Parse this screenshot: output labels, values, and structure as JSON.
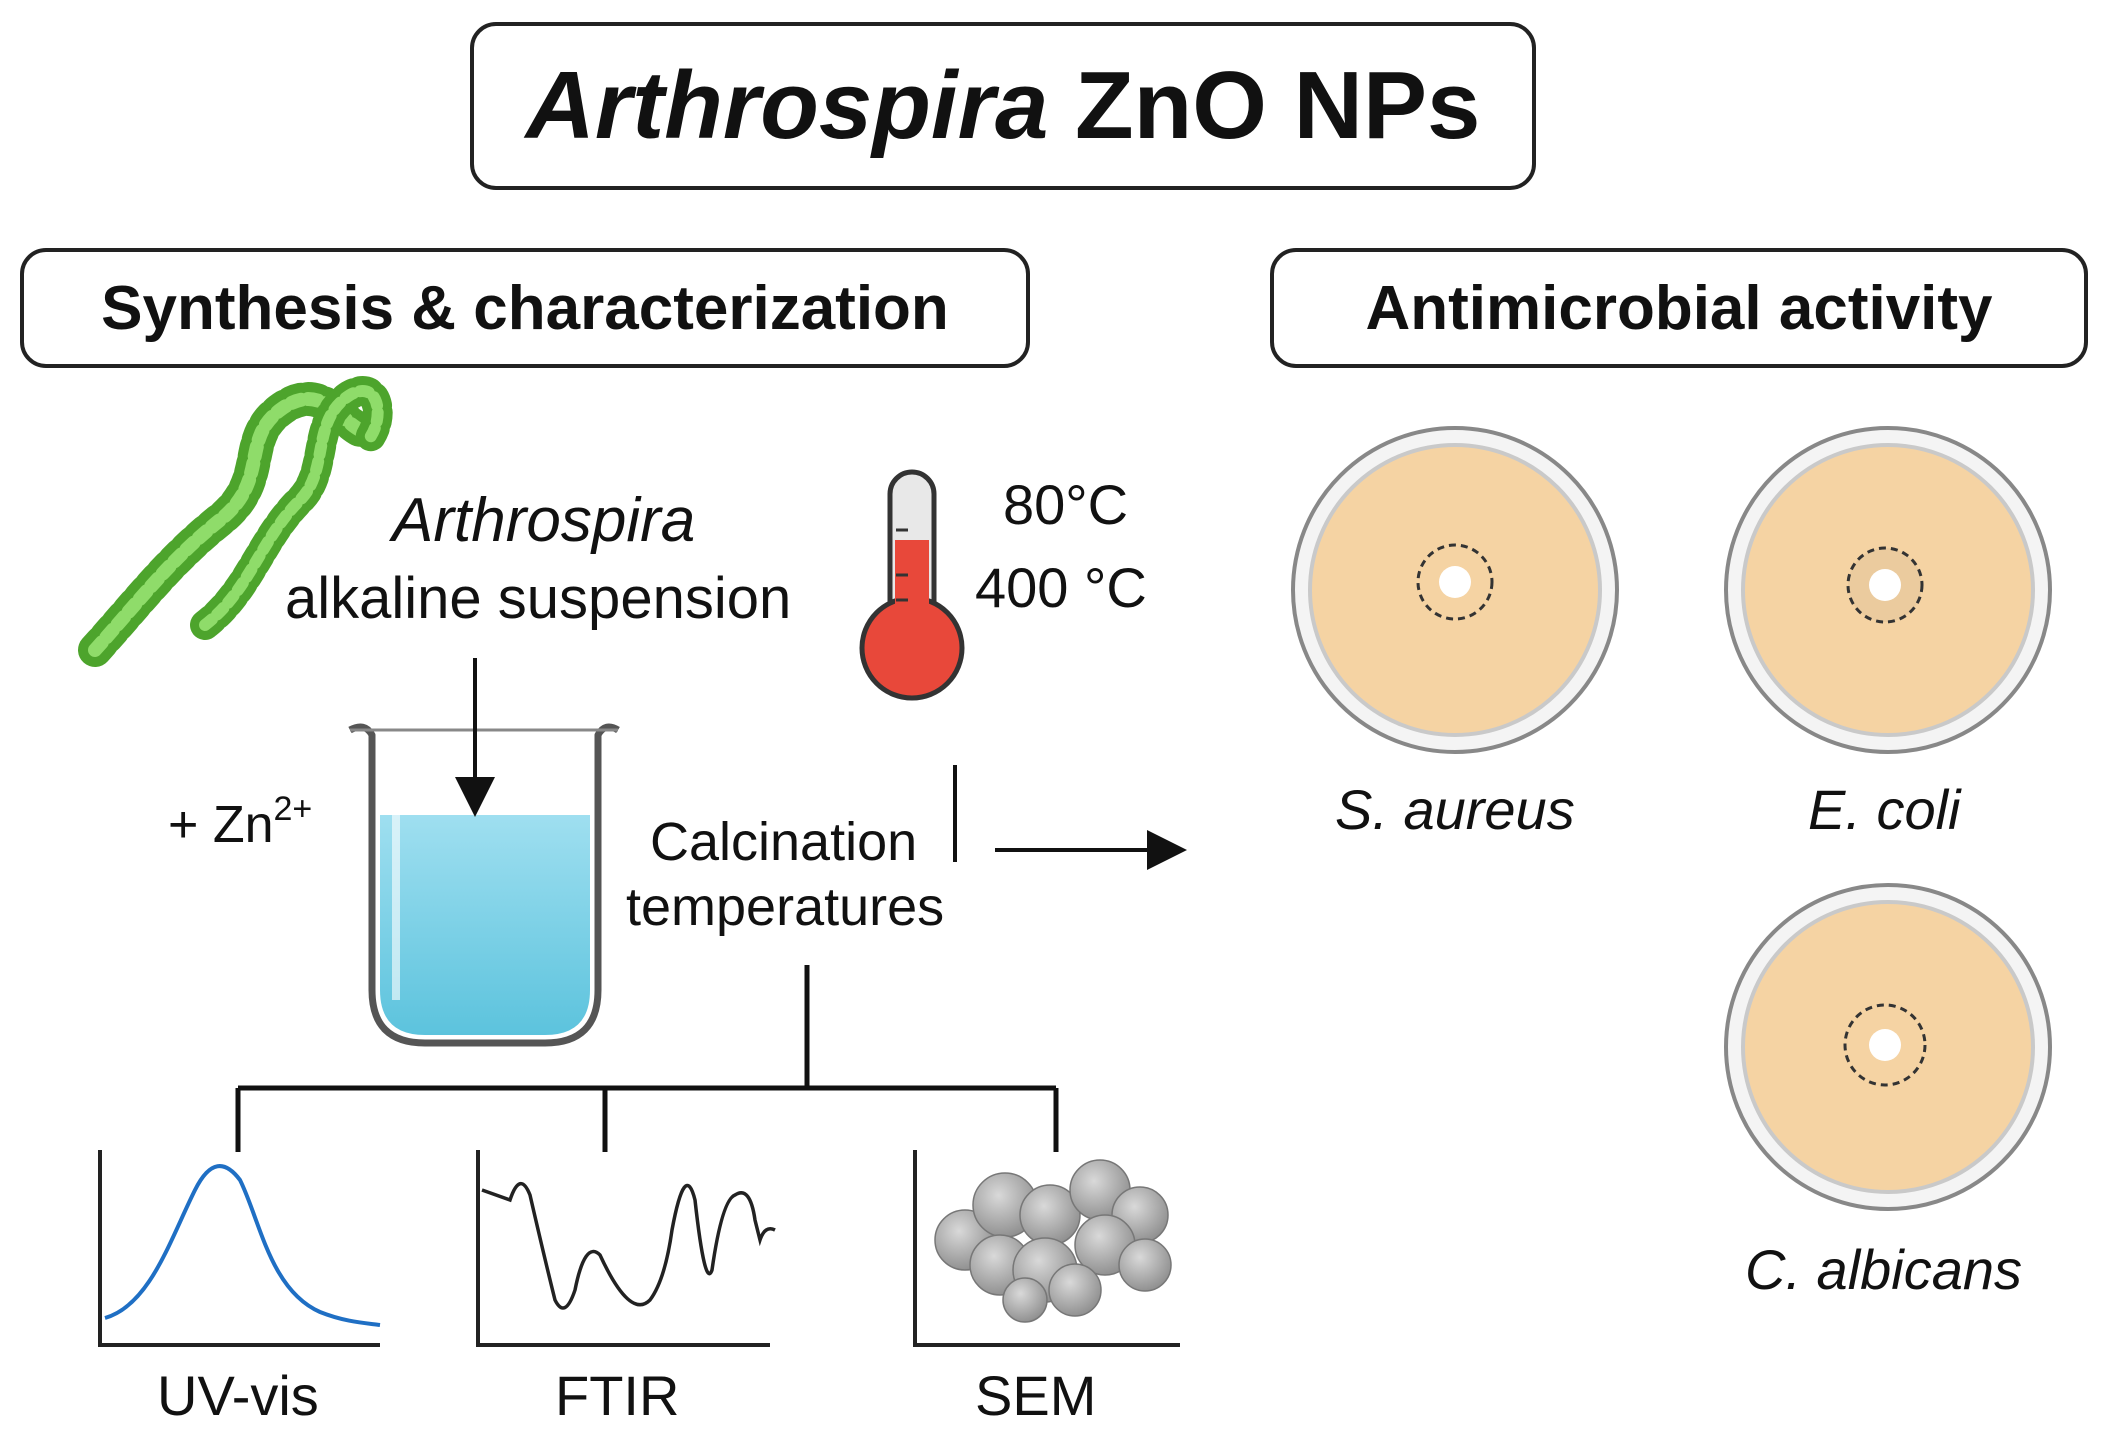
{
  "title": {
    "italic_part": "Arthrospira",
    "rest": " ZnO NPs"
  },
  "sections": {
    "left": "Synthesis & characterization",
    "right": "Antimicrobial activity"
  },
  "synthesis": {
    "organism": "Arthrospira",
    "suspension": "alkaline suspension",
    "zinc": {
      "prefix": "+ Zn",
      "charge": "2+"
    },
    "temperatures": [
      "80°C",
      "400 °C"
    ],
    "calcination": [
      "Calcination",
      "temperatures"
    ]
  },
  "characterization": [
    {
      "label": "UV-vis"
    },
    {
      "label": "FTIR"
    },
    {
      "label": "SEM"
    }
  ],
  "organisms": [
    {
      "label": "S. aureus"
    },
    {
      "label": "E. coli"
    },
    {
      "label": "C. albicans"
    }
  ],
  "colors": {
    "spiral_green": "#5fbf3a",
    "liquid_blue": "#7fd3e6",
    "thermo_red": "#e8483a",
    "agar": "#f5d3a3",
    "uv_curve": "#1f6fc4"
  }
}
